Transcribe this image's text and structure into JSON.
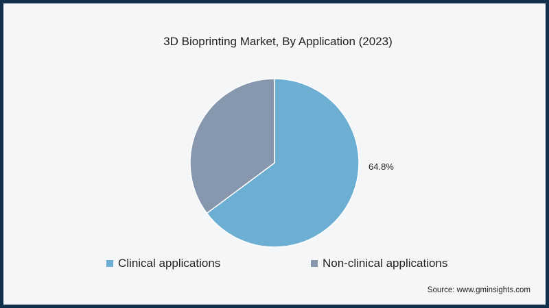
{
  "chart_data": {
    "type": "pie",
    "title": "3D Bioprinting Market, By Application (2023)",
    "slices": [
      {
        "name": "Clinical applications",
        "value": 64.8,
        "label": "64.8%",
        "color": "#6daed3"
      },
      {
        "name": "Non-clinical applications",
        "value": 35.2,
        "label": "",
        "color": "#8797ae"
      }
    ],
    "legend_position": "bottom"
  },
  "source": "Source: www.gminsights.com",
  "colors": {
    "border": "#0f2f4a",
    "background": "#f4f6f8"
  }
}
